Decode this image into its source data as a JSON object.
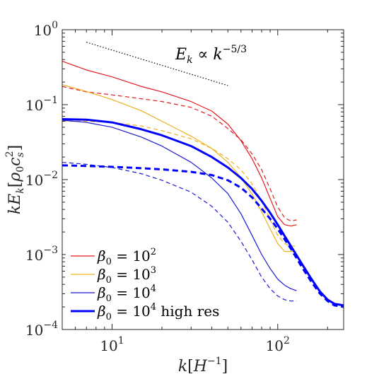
{
  "chart_data": {
    "type": "line",
    "xscale": "log",
    "yscale": "log",
    "xlim": [
      5,
      250
    ],
    "ylim": [
      0.0001,
      1
    ],
    "xticks": [
      {
        "value": 10,
        "base": "10",
        "exp": "1"
      },
      {
        "value": 100,
        "base": "10",
        "exp": "2"
      }
    ],
    "yticks": [
      {
        "value": 1,
        "base": "10",
        "exp": "0"
      },
      {
        "value": 0.1,
        "base": "10",
        "exp": "−1"
      },
      {
        "value": 0.01,
        "base": "10",
        "exp": "−2"
      },
      {
        "value": 0.001,
        "base": "10",
        "exp": "−3"
      },
      {
        "value": 0.0001,
        "base": "10",
        "exp": "−4"
      }
    ],
    "xlabel": {
      "pre": "k",
      "bracket_open": "[",
      "sym": "H",
      "exp": "−1",
      "bracket_close": "]"
    },
    "ylabel": {
      "pre": "kE",
      "sub": "k",
      "bracket_open": "[",
      "rho": "ρ",
      "rho_sub": "0",
      "c": "c",
      "c_sub": "s",
      "c_exp": "2",
      "bracket_close": "]"
    },
    "annotation": {
      "lhs": "E",
      "lhs_sub": "k",
      "rel": " ∝ ",
      "rhs": "k",
      "rhs_exp": "−5/3"
    },
    "reference_line": {
      "x": [
        7,
        50
      ],
      "y": [
        0.68,
        0.18
      ],
      "style": "dotted",
      "color": "#000000"
    },
    "legend": [
      {
        "pre": "β",
        "sub": "0",
        "eq": " = 10",
        "exp": "2",
        "post": "",
        "color": "#e41a1c",
        "width": 1.2
      },
      {
        "pre": "β",
        "sub": "0",
        "eq": " = 10",
        "exp": "3",
        "post": "",
        "color": "#edb120",
        "width": 1.2
      },
      {
        "pre": "β",
        "sub": "0",
        "eq": " = 10",
        "exp": "4",
        "post": "",
        "color": "#1a1ad6",
        "width": 1.2
      },
      {
        "pre": "β",
        "sub": "0",
        "eq": " = 10",
        "exp": "4",
        "post": " high res",
        "color": "#0000ff",
        "width": 3
      }
    ],
    "series": [
      {
        "color": "#e41a1c",
        "width": 1.2,
        "dash": "",
        "x": [
          5,
          7,
          10,
          15,
          20,
          30,
          40,
          50,
          60,
          70,
          80,
          90,
          100,
          110,
          120,
          130
        ],
        "y": [
          0.38,
          0.29,
          0.235,
          0.175,
          0.148,
          0.11,
          0.082,
          0.055,
          0.033,
          0.019,
          0.0105,
          0.0056,
          0.0032,
          0.0025,
          0.0024,
          0.0025
        ]
      },
      {
        "color": "#e41a1c",
        "width": 1.2,
        "dash": "6,4",
        "x": [
          5,
          7,
          10,
          15,
          20,
          30,
          40,
          50,
          60,
          70,
          80,
          90,
          100,
          110,
          120,
          130
        ],
        "y": [
          0.175,
          0.148,
          0.135,
          0.12,
          0.11,
          0.092,
          0.07,
          0.048,
          0.034,
          0.022,
          0.0135,
          0.0075,
          0.0043,
          0.0031,
          0.0028,
          0.0029
        ]
      },
      {
        "color": "#edb120",
        "width": 1.2,
        "dash": "",
        "x": [
          5,
          7,
          10,
          15,
          20,
          30,
          40,
          50,
          60,
          70,
          80,
          90,
          100,
          110,
          120,
          130
        ],
        "y": [
          0.185,
          0.15,
          0.117,
          0.083,
          0.06,
          0.038,
          0.026,
          0.017,
          0.0107,
          0.0064,
          0.0037,
          0.0022,
          0.0014,
          0.0011,
          0.0011,
          0.0011
        ]
      },
      {
        "color": "#edb120",
        "width": 1.2,
        "dash": "6,4",
        "x": [
          5,
          7,
          10,
          15,
          20,
          30,
          40,
          50,
          60,
          70,
          80,
          90,
          100,
          110,
          120,
          130
        ],
        "y": [
          0.06,
          0.06,
          0.058,
          0.052,
          0.045,
          0.035,
          0.026,
          0.019,
          0.0135,
          0.0088,
          0.0052,
          0.0029,
          0.0018,
          0.0014,
          0.0013,
          0.0013
        ]
      },
      {
        "color": "#1a1ad6",
        "width": 1.2,
        "dash": "",
        "x": [
          5,
          7,
          10,
          15,
          20,
          30,
          40,
          50,
          60,
          70,
          80,
          90,
          100,
          110,
          120,
          130
        ],
        "y": [
          0.062,
          0.058,
          0.05,
          0.037,
          0.028,
          0.017,
          0.0105,
          0.0065,
          0.0035,
          0.0018,
          0.001,
          0.00065,
          0.00047,
          0.00039,
          0.00035,
          0.00033
        ]
      },
      {
        "color": "#1a1ad6",
        "width": 1.2,
        "dash": "6,4",
        "x": [
          5,
          7,
          10,
          15,
          20,
          30,
          40,
          50,
          60,
          70,
          80,
          90,
          100,
          110,
          120,
          130
        ],
        "y": [
          0.017,
          0.016,
          0.0145,
          0.012,
          0.0098,
          0.0068,
          0.0044,
          0.0027,
          0.0015,
          0.00085,
          0.0005,
          0.00035,
          0.00028,
          0.00025,
          0.00024,
          0.00024
        ]
      },
      {
        "color": "#0000ff",
        "width": 3,
        "dash": "",
        "x": [
          5,
          7,
          10,
          15,
          20,
          30,
          40,
          50,
          60,
          70,
          80,
          90,
          100,
          120,
          140,
          160,
          180,
          200,
          220,
          250
        ],
        "y": [
          0.064,
          0.063,
          0.058,
          0.047,
          0.039,
          0.028,
          0.02,
          0.0145,
          0.0105,
          0.0075,
          0.0052,
          0.0036,
          0.0025,
          0.0013,
          0.00075,
          0.00047,
          0.00032,
          0.00025,
          0.00022,
          0.00021
        ]
      },
      {
        "color": "#0000ff",
        "width": 3,
        "dash": "8,5",
        "x": [
          5,
          7,
          10,
          15,
          20,
          30,
          40,
          50,
          60,
          70,
          80,
          90,
          100,
          120,
          140,
          160,
          180,
          200,
          220,
          250
        ],
        "y": [
          0.0155,
          0.0152,
          0.0148,
          0.0142,
          0.0137,
          0.0127,
          0.0115,
          0.0098,
          0.0078,
          0.0058,
          0.0041,
          0.003,
          0.0022,
          0.0012,
          0.00068,
          0.00043,
          0.0003,
          0.00024,
          0.00021,
          0.0002
        ]
      }
    ]
  }
}
